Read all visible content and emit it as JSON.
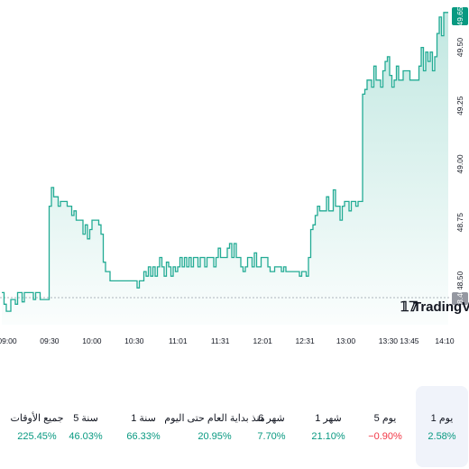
{
  "colors": {
    "line": "#22ab94",
    "fill_top": "#22ab94",
    "positive": "#089981",
    "negative": "#f23645",
    "badge_current": "#089981",
    "badge_prev_close": "#9598a1"
  },
  "chart_data": {
    "type": "area",
    "x_ticks": [
      "09:00",
      "09:30",
      "10:00",
      "10:30",
      "11:01",
      "11:31",
      "12:01",
      "12:31",
      "13:00",
      "13:30",
      "13:45",
      "14:10"
    ],
    "y_ticks": [
      "49.50",
      "49.25",
      "49.00",
      "48.75",
      "48.50"
    ],
    "y_range": [
      48.32,
      49.68
    ],
    "last_price": "49.65",
    "prev_close": "48.40",
    "logo_text": "TradingView",
    "series": [
      {
        "values": [
          48.45,
          48.4,
          48.37,
          48.37,
          48.42,
          48.42,
          48.4,
          48.45,
          48.45,
          48.41,
          48.45,
          48.45,
          48.45,
          48.45,
          48.42,
          48.45,
          48.45,
          48.42,
          48.42,
          48.42,
          48.42,
          48.82,
          48.9,
          48.86,
          48.86,
          48.82,
          48.84,
          48.84,
          48.84,
          48.82,
          48.82,
          48.78,
          48.8,
          48.76,
          48.76,
          48.76,
          48.7,
          48.74,
          48.68,
          48.72,
          48.76,
          48.76,
          48.76,
          48.74,
          48.7,
          48.58,
          48.54,
          48.54,
          48.5,
          48.5,
          48.5,
          48.5,
          48.5,
          48.5,
          48.5,
          48.5,
          48.5,
          48.5,
          48.5,
          48.5,
          48.47,
          48.5,
          48.5,
          48.54,
          48.52,
          48.56,
          48.52,
          48.56,
          48.52,
          48.56,
          48.6,
          48.56,
          48.52,
          48.58,
          48.56,
          48.52,
          48.56,
          48.54,
          48.56,
          48.6,
          48.56,
          48.6,
          48.56,
          48.6,
          48.56,
          48.6,
          48.6,
          48.56,
          48.6,
          48.6,
          48.56,
          48.6,
          48.6,
          48.6,
          48.56,
          48.6,
          48.64,
          48.6,
          48.6,
          48.6,
          48.64,
          48.66,
          48.6,
          48.66,
          48.6,
          48.6,
          48.56,
          48.54,
          48.56,
          48.6,
          48.6,
          48.56,
          48.62,
          48.56,
          48.56,
          48.6,
          48.6,
          48.6,
          48.56,
          48.54,
          48.54,
          48.56,
          48.56,
          48.56,
          48.54,
          48.56,
          48.54,
          48.54,
          48.54,
          48.54,
          48.54,
          48.54,
          48.52,
          48.54,
          48.54,
          48.52,
          48.6,
          48.72,
          48.74,
          48.78,
          48.82,
          48.8,
          48.8,
          48.8,
          48.86,
          48.8,
          48.8,
          48.89,
          48.82,
          48.82,
          48.76,
          48.82,
          48.84,
          48.84,
          48.8,
          48.84,
          48.84,
          48.82,
          48.84,
          48.84,
          49.3,
          49.32,
          49.36,
          49.36,
          49.33,
          49.42,
          49.36,
          49.36,
          49.33,
          49.4,
          49.44,
          49.46,
          49.38,
          49.33,
          49.36,
          49.42,
          49.36,
          49.36,
          49.4,
          49.4,
          49.4,
          49.36,
          49.36,
          49.36,
          49.36,
          49.42,
          49.5,
          49.4,
          49.48,
          49.44,
          49.48,
          49.4,
          49.46,
          49.56,
          49.63,
          49.55,
          49.65,
          49.65,
          49.65
        ]
      }
    ]
  },
  "periods": [
    {
      "label": "1 يوم",
      "value": "2.58%",
      "sign": "pos",
      "active": true
    },
    {
      "label": "5 يوم",
      "value": "−0.90%",
      "sign": "neg",
      "active": false
    },
    {
      "label": "1 شهر",
      "value": "21.10%",
      "sign": "pos",
      "active": false
    },
    {
      "label": "6 شهر",
      "value": "7.70%",
      "sign": "pos",
      "active": false
    },
    {
      "label": "منذ بداية العام حتى اليوم",
      "value": "20.95%",
      "sign": "pos",
      "active": false
    },
    {
      "label": "1 سنة",
      "value": "66.33%",
      "sign": "pos",
      "active": false
    },
    {
      "label": "5 سنة",
      "value": "46.03%",
      "sign": "pos",
      "active": false
    },
    {
      "label": "جميع الأوقات",
      "value": "225.45%",
      "sign": "pos",
      "active": false
    }
  ]
}
